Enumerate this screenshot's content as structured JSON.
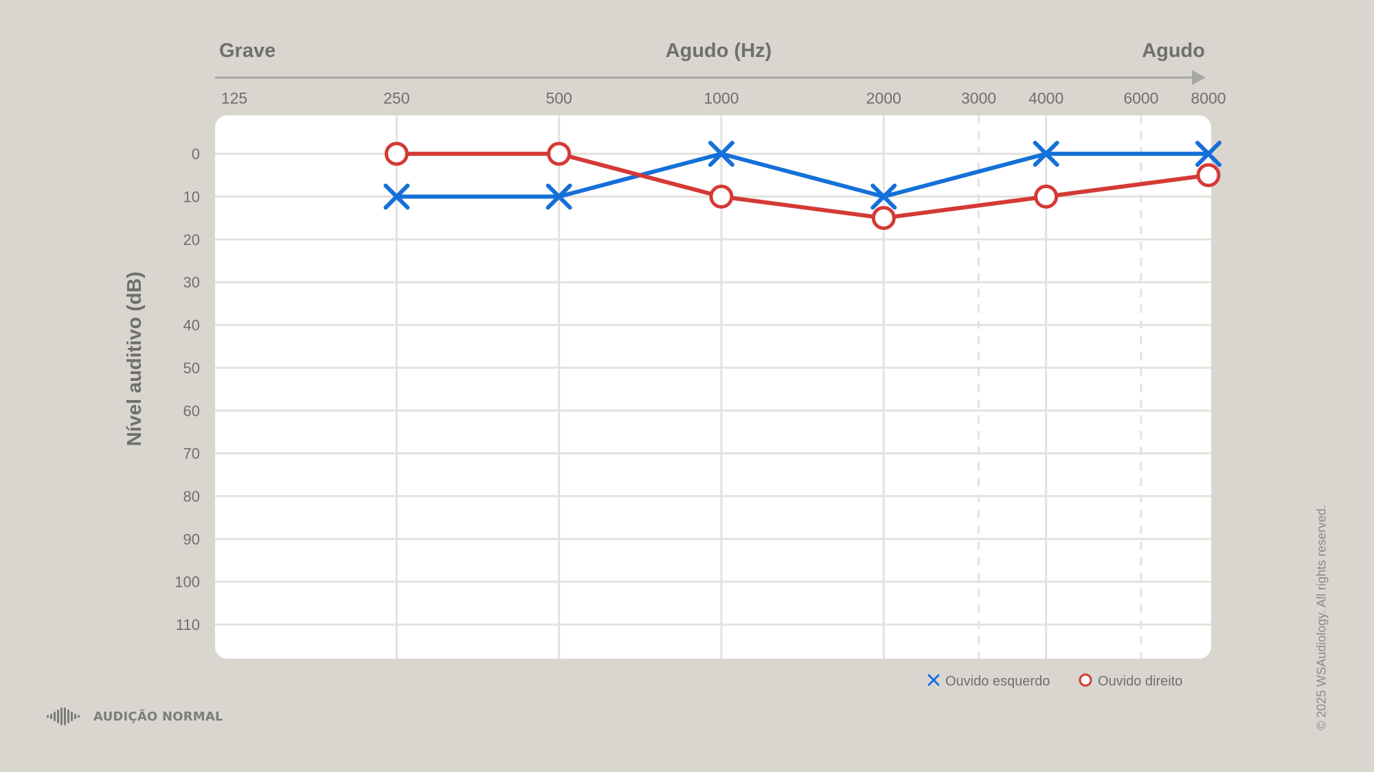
{
  "chart_data": {
    "type": "line",
    "x_scale": "log",
    "x_axis": {
      "left_label": "Grave",
      "center_label": "Agudo (Hz)",
      "right_label": "Agudo",
      "ticks": [
        125,
        250,
        500,
        1000,
        2000,
        3000,
        4000,
        6000,
        8000
      ],
      "tick_labels": [
        "125",
        "250",
        "500",
        "1000",
        "2000",
        "3000",
        "4000",
        "6000",
        "8000"
      ],
      "major_gridlines": [
        250,
        500,
        1000,
        2000,
        4000
      ],
      "dashed_gridlines": [
        3000,
        6000
      ]
    },
    "y_axis": {
      "label": "Nível auditivo (dB)",
      "ticks": [
        0,
        10,
        20,
        30,
        40,
        50,
        60,
        70,
        80,
        90,
        100,
        110
      ],
      "tick_labels": [
        "0",
        "10",
        "20",
        "30",
        "40",
        "50",
        "60",
        "70",
        "80",
        "90",
        "100",
        "110"
      ],
      "ylim": [
        -9,
        118
      ],
      "inverted": true
    },
    "grid": true,
    "legend": {
      "placement": "bottom-right",
      "entries": [
        "Ouvido esquerdo",
        "Ouvido direito"
      ]
    },
    "series": [
      {
        "name": "Ouvido esquerdo",
        "marker": "x",
        "color": "#1570d8",
        "points": [
          {
            "x": 250,
            "y": 10
          },
          {
            "x": 500,
            "y": 10
          },
          {
            "x": 1000,
            "y": 0
          },
          {
            "x": 2000,
            "y": 10
          },
          {
            "x": 4000,
            "y": 0
          },
          {
            "x": 8000,
            "y": 0
          }
        ]
      },
      {
        "name": "Ouvido direito",
        "marker": "o",
        "color": "#d43a35",
        "points": [
          {
            "x": 250,
            "y": 0
          },
          {
            "x": 500,
            "y": 0
          },
          {
            "x": 1000,
            "y": 10
          },
          {
            "x": 2000,
            "y": 15
          },
          {
            "x": 4000,
            "y": 10
          },
          {
            "x": 8000,
            "y": 5
          }
        ]
      }
    ]
  },
  "footer": {
    "brand_label": "AUDIÇÃO NORMAL",
    "copyright": "© 2025 WSAudiology. All rights reserved."
  },
  "colors": {
    "background": "#d9d6d0",
    "plot_background": "#ffffff",
    "grid": "#e4e2de",
    "axis_text": "#6f6f6f",
    "axis_arrow": "#a7a7a7"
  },
  "icons": {
    "brand": "sound-wave-icon"
  }
}
